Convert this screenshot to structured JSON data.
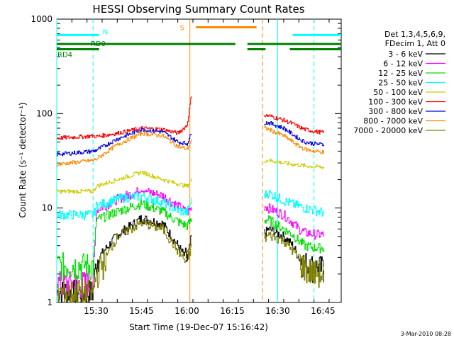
{
  "chart_data": {
    "type": "line",
    "title": "HESSI Observing Summary Count Rates",
    "xlabel": "Start Time (19-Dec-07 15:16:42)",
    "ylabel": "Count Rate (s⁻¹ detector⁻¹)",
    "yscale": "log",
    "ylim": [
      1,
      1000
    ],
    "xlim_min": [
      0,
      94
    ],
    "x_ticks": [
      {
        "min": 13,
        "label": "15:30"
      },
      {
        "min": 28,
        "label": "15:45"
      },
      {
        "min": 43,
        "label": "16:00"
      },
      {
        "min": 58,
        "label": "16:15"
      },
      {
        "min": 73,
        "label": "16:30"
      },
      {
        "min": 88,
        "label": "16:45"
      }
    ],
    "y_ticks": [
      {
        "v": 1,
        "label": "1"
      },
      {
        "v": 10,
        "label": "10"
      },
      {
        "v": 100,
        "label": "100"
      },
      {
        "v": 1000,
        "label": "1000"
      }
    ],
    "legend_header": [
      "Det 1,3,4,5,6,9,",
      "FDecim 1, Att 0"
    ],
    "gap_min": [
      44.5,
      68.5
    ],
    "series": [
      {
        "name": "3 - 6 keV",
        "color": "#000000",
        "x": [
          0,
          12,
          13,
          20,
          28,
          35,
          40,
          43,
          44.5,
          69,
          70,
          75,
          78,
          80,
          82,
          85,
          88
        ],
        "y": [
          1.3,
          1.3,
          2.8,
          5.2,
          7.8,
          6.8,
          4.0,
          2.8,
          5.0,
          5.5,
          6.0,
          5.0,
          4.0,
          3.0,
          2.6,
          2.4,
          2.3
        ]
      },
      {
        "name": "6 - 12 keV",
        "color": "#ff00ff",
        "x": [
          0,
          12,
          13,
          20,
          28,
          35,
          40,
          43,
          44.5,
          69,
          70,
          75,
          78,
          80,
          82,
          85,
          88
        ],
        "y": [
          1.6,
          1.6,
          9.5,
          12.5,
          15.5,
          13.5,
          10.5,
          9.0,
          10.0,
          10.5,
          10.0,
          8.5,
          7.0,
          6.0,
          5.5,
          5.3,
          5.2
        ]
      },
      {
        "name": "12 - 25 keV",
        "color": "#00dd00",
        "x": [
          0,
          12,
          13,
          20,
          28,
          35,
          40,
          43,
          44.5,
          69,
          70,
          75,
          78,
          80,
          82,
          85,
          88
        ],
        "y": [
          2.5,
          2.5,
          7.5,
          9.2,
          11.2,
          9.2,
          7.2,
          6.5,
          7.5,
          7.5,
          7.5,
          6.0,
          5.2,
          4.5,
          4.0,
          3.8,
          3.8
        ]
      },
      {
        "name": "25 - 50 keV",
        "color": "#00ffff",
        "x": [
          0,
          12,
          13,
          20,
          28,
          35,
          40,
          43,
          44.5,
          69,
          70,
          75,
          78,
          80,
          82,
          85,
          88
        ],
        "y": [
          8.5,
          8.5,
          10.5,
          12.5,
          13.5,
          11.5,
          9.5,
          9.0,
          12.0,
          14.0,
          14.5,
          12.0,
          11.0,
          10.5,
          10.0,
          9.5,
          9.0
        ]
      },
      {
        "name": "50 - 100 keV",
        "color": "#cccc00",
        "x": [
          0,
          12,
          13,
          20,
          28,
          35,
          40,
          43,
          44.5,
          69,
          70,
          75,
          78,
          80,
          82,
          85,
          88
        ],
        "y": [
          15,
          15,
          17,
          20,
          24,
          20,
          18,
          17,
          20,
          32,
          32,
          30,
          29,
          28.5,
          28,
          27.5,
          27
        ]
      },
      {
        "name": "100 - 300 keV",
        "color": "#ff0000",
        "x": [
          0,
          12,
          13,
          20,
          28,
          35,
          40,
          43,
          44.5,
          69,
          70,
          75,
          78,
          80,
          82,
          85,
          88
        ],
        "y": [
          55,
          58,
          57,
          62,
          70,
          68,
          62,
          75,
          160,
          95,
          95,
          85,
          78,
          72,
          68,
          65,
          63
        ]
      },
      {
        "name": "300 - 800 keV",
        "color": "#0000dd",
        "x": [
          0,
          12,
          13,
          20,
          28,
          35,
          40,
          43,
          44.5,
          69,
          70,
          75,
          78,
          80,
          82,
          85,
          88
        ],
        "y": [
          37,
          40,
          41,
          54,
          68,
          64,
          50,
          48,
          62,
          80,
          80,
          70,
          60,
          54,
          50,
          48,
          47
        ]
      },
      {
        "name": "800 - 7000 keV",
        "color": "#ff8800",
        "x": [
          0,
          12,
          13,
          20,
          28,
          35,
          40,
          43,
          44.5,
          69,
          70,
          75,
          78,
          80,
          82,
          85,
          88
        ],
        "y": [
          29,
          32,
          33,
          47,
          62,
          58,
          45,
          42,
          52,
          70,
          68,
          58,
          50,
          45,
          42,
          40,
          39
        ]
      },
      {
        "name": "7000 - 20000 keV",
        "color": "#808000",
        "x": [
          0,
          12,
          13,
          20,
          28,
          35,
          40,
          43,
          44.5,
          69,
          70,
          75,
          78,
          80,
          82,
          85,
          88
        ],
        "y": [
          1.25,
          1.3,
          2.0,
          5.0,
          7.0,
          6.0,
          3.5,
          2.6,
          4.0,
          4.8,
          5.2,
          4.5,
          3.5,
          2.8,
          2.3,
          2.1,
          2.0
        ]
      }
    ],
    "bars": [
      {
        "label": "N",
        "color": "#00ffff",
        "y": 680,
        "segments": [
          [
            0,
            14
          ],
          [
            78,
            94
          ]
        ]
      },
      {
        "label": "RD0",
        "color": "#008000",
        "y": 545,
        "segments": [
          [
            0,
            30
          ],
          [
            30,
            59
          ],
          [
            63,
            94
          ]
        ]
      },
      {
        "label": "RD4",
        "color": "#008000",
        "y": 480,
        "segments": [
          [
            0,
            14
          ],
          [
            63,
            69
          ],
          [
            77,
            94
          ]
        ]
      },
      {
        "label": "S",
        "color": "#ff8800",
        "y": 820,
        "segments": [
          [
            46,
            66
          ]
        ]
      }
    ],
    "vlines": [
      {
        "min": 0,
        "color": "#00ffff",
        "style": "solid"
      },
      {
        "min": 12,
        "color": "#00ffff",
        "style": "dashed"
      },
      {
        "min": 44,
        "color": "#ff8800",
        "style": "solid"
      },
      {
        "min": 68,
        "color": "#ff8800",
        "style": "dashed"
      },
      {
        "min": 73,
        "color": "#00ffff",
        "style": "solid"
      },
      {
        "min": 85,
        "color": "#00ffff",
        "style": "dashed"
      }
    ]
  },
  "footer": {
    "timestamp": "3-Mar-2010 08:28"
  }
}
